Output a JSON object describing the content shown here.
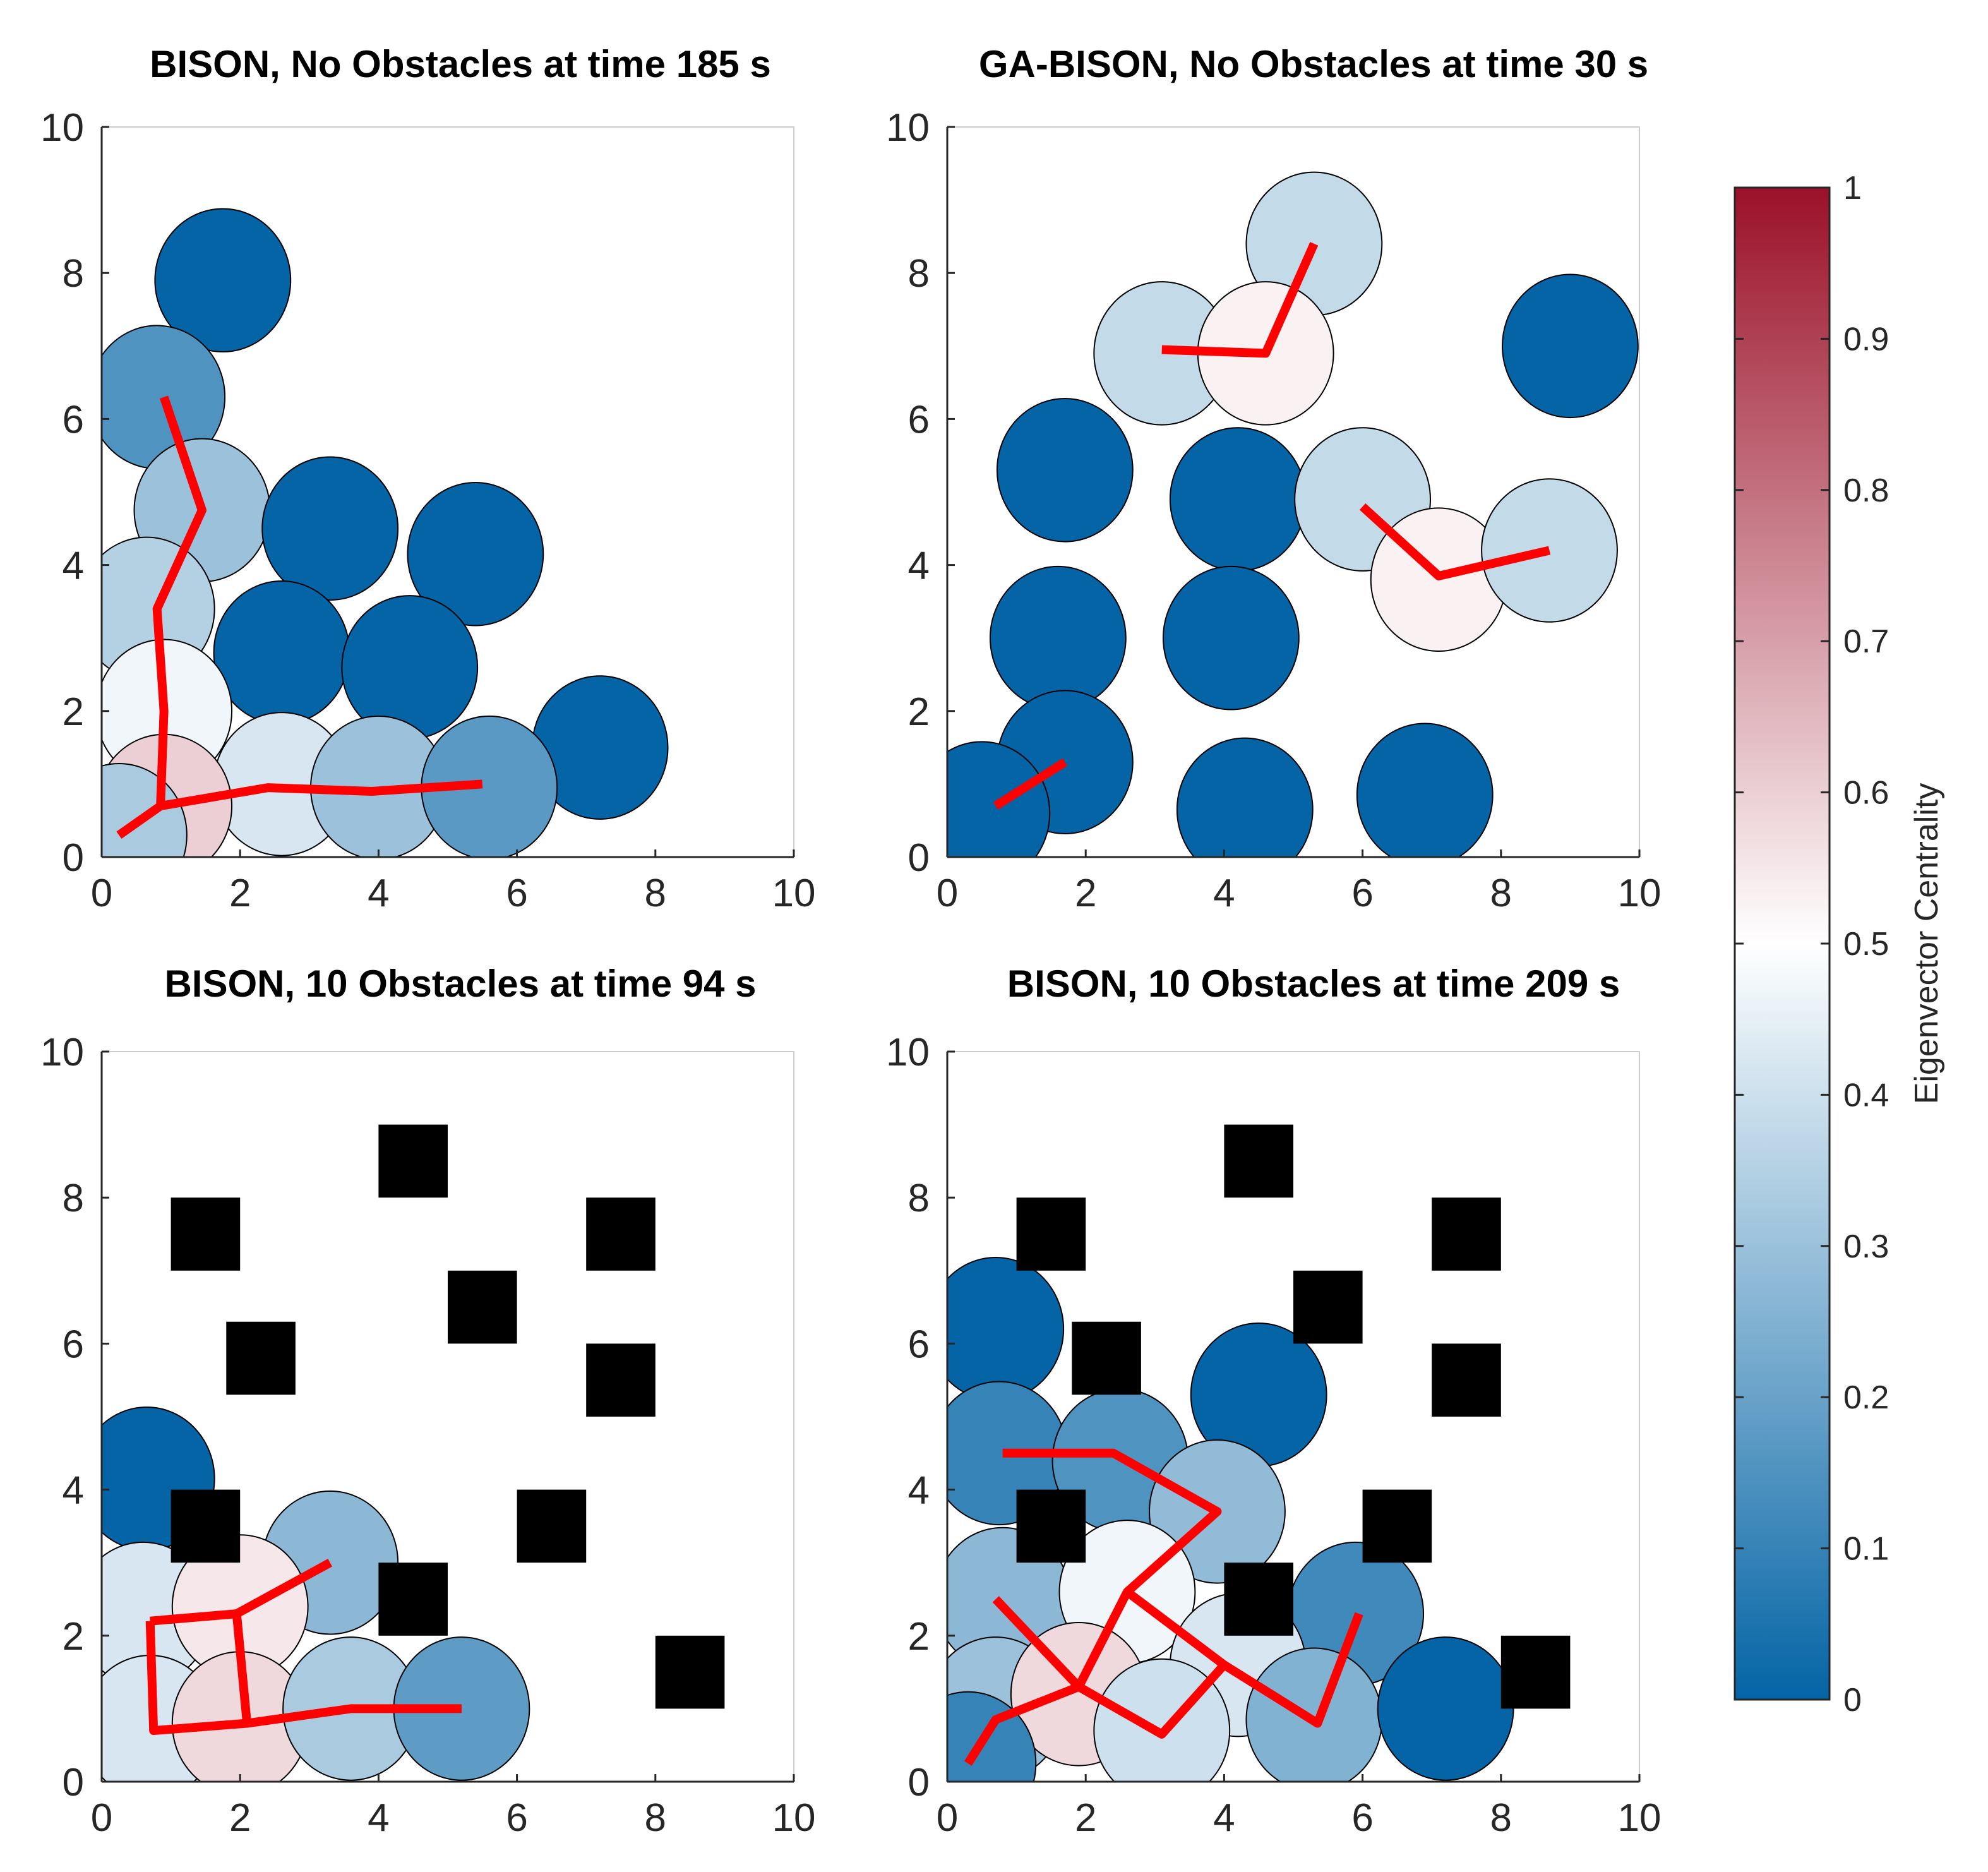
{
  "chart_data": [
    {
      "type": "scatter",
      "title": "BISON, No Obstacles at time 185 s",
      "xlim": [
        0,
        10
      ],
      "ylim": [
        0,
        10
      ],
      "xticks": [
        "0",
        "2",
        "4",
        "6",
        "8",
        "10"
      ],
      "yticks": [
        "0",
        "2",
        "4",
        "6",
        "8",
        "10"
      ],
      "cells": [
        {
          "x": 1.75,
          "y": 7.9,
          "c": 0.0
        },
        {
          "x": 0.8,
          "y": 6.3,
          "c": 0.15
        },
        {
          "x": 1.45,
          "y": 4.75,
          "c": 0.3
        },
        {
          "x": 3.3,
          "y": 4.5,
          "c": 0.0
        },
        {
          "x": 5.4,
          "y": 4.15,
          "c": 0.0
        },
        {
          "x": 0.65,
          "y": 3.4,
          "c": 0.35
        },
        {
          "x": 2.6,
          "y": 2.8,
          "c": 0.0
        },
        {
          "x": 4.45,
          "y": 2.6,
          "c": 0.0
        },
        {
          "x": 7.2,
          "y": 1.5,
          "c": 0.0
        },
        {
          "x": 0.9,
          "y": 2.0,
          "c": 0.47
        },
        {
          "x": 2.6,
          "y": 1.0,
          "c": 0.42
        },
        {
          "x": 4.0,
          "y": 0.95,
          "c": 0.3
        },
        {
          "x": 5.6,
          "y": 0.95,
          "c": 0.17
        },
        {
          "x": 0.9,
          "y": 0.7,
          "c": 0.6
        },
        {
          "x": 0.25,
          "y": 0.3,
          "c": 0.33
        }
      ],
      "obstacles": [],
      "paths": [
        [
          [
            0.9,
            6.3
          ],
          [
            1.45,
            4.75
          ],
          [
            0.8,
            3.4
          ],
          [
            0.9,
            2.0
          ],
          [
            0.85,
            0.7
          ],
          [
            0.25,
            0.3
          ]
        ],
        [
          [
            0.85,
            0.7
          ],
          [
            2.4,
            0.95
          ],
          [
            3.9,
            0.9
          ],
          [
            5.5,
            1.0
          ]
        ]
      ]
    },
    {
      "type": "scatter",
      "title": "GA-BISON, No Obstacles at time 30 s",
      "xlim": [
        0,
        10
      ],
      "ylim": [
        0,
        10
      ],
      "xticks": [
        "0",
        "2",
        "4",
        "6",
        "8",
        "10"
      ],
      "yticks": [
        "0",
        "2",
        "4",
        "6",
        "8",
        "10"
      ],
      "cells": [
        {
          "x": 5.3,
          "y": 8.4,
          "c": 0.38
        },
        {
          "x": 3.1,
          "y": 6.9,
          "c": 0.38
        },
        {
          "x": 4.6,
          "y": 6.9,
          "c": 0.53
        },
        {
          "x": 9.0,
          "y": 7.0,
          "c": 0.0
        },
        {
          "x": 1.7,
          "y": 5.3,
          "c": 0.0
        },
        {
          "x": 4.2,
          "y": 4.9,
          "c": 0.0
        },
        {
          "x": 6.0,
          "y": 4.9,
          "c": 0.38
        },
        {
          "x": 7.1,
          "y": 3.8,
          "c": 0.53
        },
        {
          "x": 8.7,
          "y": 4.2,
          "c": 0.38
        },
        {
          "x": 1.6,
          "y": 3.0,
          "c": 0.0
        },
        {
          "x": 4.1,
          "y": 3.0,
          "c": 0.0
        },
        {
          "x": 1.7,
          "y": 1.3,
          "c": 0.0
        },
        {
          "x": 0.5,
          "y": 0.6,
          "c": 0.0
        },
        {
          "x": 4.3,
          "y": 0.65,
          "c": 0.0
        },
        {
          "x": 6.9,
          "y": 0.85,
          "c": 0.0
        }
      ],
      "obstacles": [],
      "paths": [
        [
          [
            3.1,
            6.95
          ],
          [
            4.6,
            6.9
          ],
          [
            5.3,
            8.4
          ]
        ],
        [
          [
            6.0,
            4.8
          ],
          [
            7.1,
            3.85
          ],
          [
            8.7,
            4.2
          ]
        ],
        [
          [
            0.7,
            0.7
          ],
          [
            1.7,
            1.3
          ]
        ]
      ]
    },
    {
      "type": "scatter",
      "title": "BISON, 10 Obstacles at time 94 s",
      "xlim": [
        0,
        10
      ],
      "ylim": [
        0,
        10
      ],
      "xticks": [
        "0",
        "2",
        "4",
        "6",
        "8",
        "10"
      ],
      "yticks": [
        "0",
        "2",
        "4",
        "6",
        "8",
        "10"
      ],
      "cells": [
        {
          "x": 0.65,
          "y": 4.15,
          "c": 0.0
        },
        {
          "x": 3.3,
          "y": 3.0,
          "c": 0.27
        },
        {
          "x": 0.6,
          "y": 2.3,
          "c": 0.42
        },
        {
          "x": 2.0,
          "y": 2.4,
          "c": 0.55
        },
        {
          "x": 0.7,
          "y": 0.75,
          "c": 0.42
        },
        {
          "x": 2.0,
          "y": 0.8,
          "c": 0.58
        },
        {
          "x": 3.6,
          "y": 1.0,
          "c": 0.33
        },
        {
          "x": 5.2,
          "y": 1.0,
          "c": 0.18
        }
      ],
      "obstacles": [
        {
          "x": 4.5,
          "y": 8.5
        },
        {
          "x": 1.5,
          "y": 7.5
        },
        {
          "x": 7.5,
          "y": 7.5
        },
        {
          "x": 5.5,
          "y": 6.5
        },
        {
          "x": 2.3,
          "y": 5.8
        },
        {
          "x": 7.5,
          "y": 5.5
        },
        {
          "x": 1.5,
          "y": 3.5
        },
        {
          "x": 6.5,
          "y": 3.5
        },
        {
          "x": 4.5,
          "y": 2.5
        },
        {
          "x": 8.5,
          "y": 1.5
        }
      ],
      "paths": [
        [
          [
            0.7,
            2.2
          ],
          [
            1.95,
            2.3
          ],
          [
            2.1,
            0.8
          ],
          [
            0.75,
            0.7
          ],
          [
            0.7,
            2.2
          ]
        ],
        [
          [
            1.95,
            2.3
          ],
          [
            3.3,
            3.0
          ]
        ],
        [
          [
            2.1,
            0.8
          ],
          [
            3.6,
            1.0
          ],
          [
            5.2,
            1.0
          ]
        ]
      ]
    },
    {
      "type": "scatter",
      "title": "BISON, 10 Obstacles at time 209 s",
      "xlim": [
        0,
        10
      ],
      "ylim": [
        0,
        10
      ],
      "xticks": [
        "0",
        "2",
        "4",
        "6",
        "8",
        "10"
      ],
      "yticks": [
        "0",
        "2",
        "4",
        "6",
        "8",
        "10"
      ],
      "cells": [
        {
          "x": 0.7,
          "y": 6.2,
          "c": 0.0
        },
        {
          "x": 4.5,
          "y": 5.3,
          "c": 0.0
        },
        {
          "x": 0.75,
          "y": 4.5,
          "c": 0.1
        },
        {
          "x": 2.5,
          "y": 4.4,
          "c": 0.15
        },
        {
          "x": 3.9,
          "y": 3.7,
          "c": 0.28
        },
        {
          "x": 0.8,
          "y": 2.5,
          "c": 0.27
        },
        {
          "x": 2.6,
          "y": 2.6,
          "c": 0.47
        },
        {
          "x": 5.9,
          "y": 2.3,
          "c": 0.12
        },
        {
          "x": 0.7,
          "y": 1.0,
          "c": 0.3
        },
        {
          "x": 1.9,
          "y": 1.2,
          "c": 0.58
        },
        {
          "x": 4.2,
          "y": 1.6,
          "c": 0.42
        },
        {
          "x": 3.1,
          "y": 0.7,
          "c": 0.4
        },
        {
          "x": 5.3,
          "y": 0.85,
          "c": 0.25
        },
        {
          "x": 7.2,
          "y": 1.0,
          "c": 0.0
        },
        {
          "x": 0.3,
          "y": 0.25,
          "c": 0.1
        }
      ],
      "obstacles": [
        {
          "x": 4.5,
          "y": 8.5
        },
        {
          "x": 1.5,
          "y": 7.5
        },
        {
          "x": 7.5,
          "y": 7.5
        },
        {
          "x": 5.5,
          "y": 6.5
        },
        {
          "x": 2.3,
          "y": 5.8
        },
        {
          "x": 7.5,
          "y": 5.5
        },
        {
          "x": 1.5,
          "y": 3.5
        },
        {
          "x": 6.5,
          "y": 3.5
        },
        {
          "x": 4.5,
          "y": 2.5
        },
        {
          "x": 8.5,
          "y": 1.5
        }
      ],
      "paths": [
        [
          [
            0.8,
            4.5
          ],
          [
            2.4,
            4.5
          ],
          [
            3.9,
            3.7
          ],
          [
            2.6,
            2.6
          ],
          [
            1.9,
            1.3
          ],
          [
            0.7,
            2.5
          ]
        ],
        [
          [
            2.6,
            2.6
          ],
          [
            4.0,
            1.6
          ],
          [
            5.35,
            0.8
          ],
          [
            5.95,
            2.3
          ]
        ],
        [
          [
            4.0,
            1.6
          ],
          [
            3.1,
            0.65
          ],
          [
            1.9,
            1.3
          ],
          [
            0.7,
            0.85
          ],
          [
            0.3,
            0.25
          ]
        ]
      ]
    }
  ],
  "colorbar": {
    "label": "Eigenvector Centrality",
    "ticks": [
      "0",
      "0.1",
      "0.2",
      "0.3",
      "0.4",
      "0.5",
      "0.6",
      "0.7",
      "0.8",
      "0.9",
      "1"
    ],
    "color_low": "#0464a5",
    "color_mid": "#ffffff",
    "color_high": "#9b1129"
  }
}
